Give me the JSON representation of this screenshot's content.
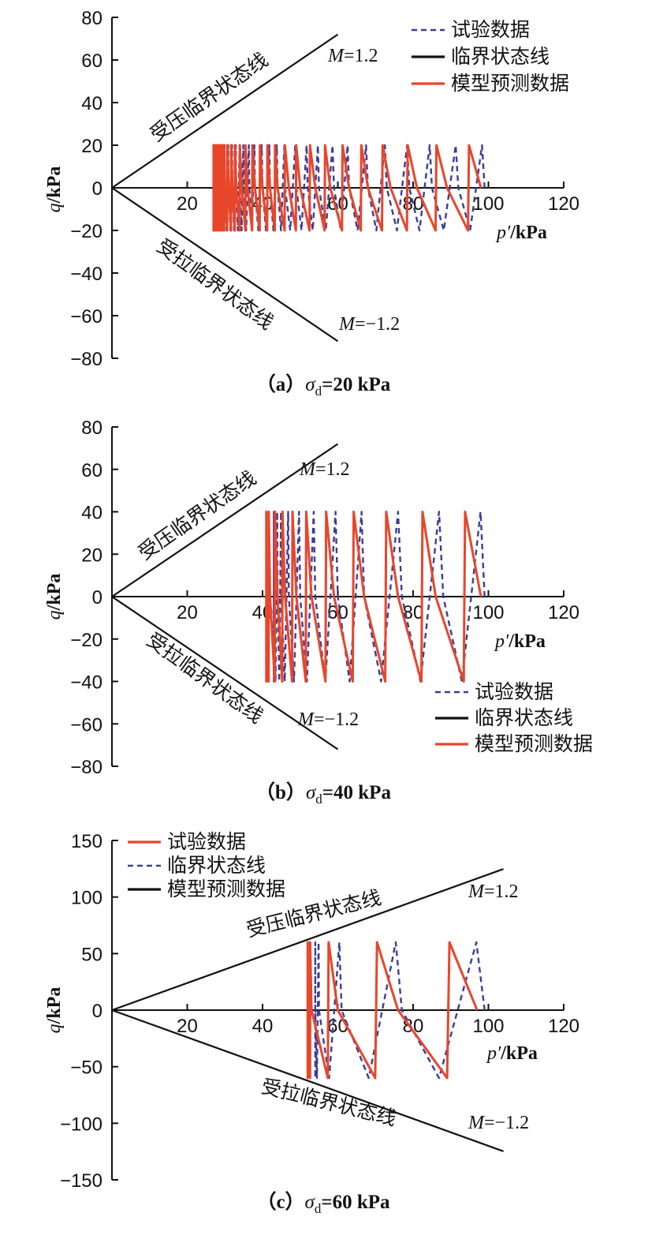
{
  "colors": {
    "test": "#3a3d9a",
    "model": "#e8462a",
    "line": "#111111"
  },
  "chart_data": [
    {
      "type": "line",
      "caption": "（a）σd=20 kPa",
      "xlabel": "p′/kPa",
      "ylabel": "q/kPa",
      "xlim": [
        0,
        120
      ],
      "ylim": [
        -80,
        80
      ],
      "x_ticks": [
        20,
        40,
        60,
        80,
        100,
        120
      ],
      "y_ticks": [
        80,
        60,
        40,
        20,
        0,
        -20,
        -40,
        -60,
        -80
      ],
      "upper_line_label": "M=1.2",
      "lower_line_label": "M=−1.2",
      "upper_line_text": "受压临界状态线",
      "lower_line_text": "受拉临界状态线",
      "legend": [
        "试验数据",
        "临界状态线",
        "模型预测数据"
      ],
      "cycle_amplitude": 20,
      "test_cycles_p": [
        99,
        92,
        85,
        79,
        73,
        68,
        63,
        59,
        55,
        52,
        49,
        46,
        44,
        42,
        40,
        38,
        36.5,
        35,
        34,
        33,
        32,
        31,
        30,
        29.5,
        29,
        28.5,
        28
      ],
      "model_cycles_p": [
        98,
        89,
        81,
        74,
        68,
        63,
        58,
        54,
        50,
        47,
        44,
        42,
        40,
        38,
        36,
        34.5,
        33,
        32,
        31,
        30,
        29.5,
        29,
        28.5,
        28,
        27.5,
        27.2,
        27
      ]
    },
    {
      "type": "line",
      "caption": "（b）σd=40 kPa",
      "xlabel": "p′/kPa",
      "ylabel": "q/kPa",
      "xlim": [
        0,
        120
      ],
      "ylim": [
        -80,
        80
      ],
      "x_ticks": [
        20,
        40,
        60,
        80,
        100,
        120
      ],
      "y_ticks": [
        80,
        60,
        40,
        20,
        0,
        -20,
        -40,
        -60,
        -80
      ],
      "upper_line_label": "M=1.2",
      "lower_line_label": "M=−1.2",
      "upper_line_text": "受压临界状态线",
      "lower_line_text": "受拉临界状态线",
      "legend": [
        "试验数据",
        "临界状态线",
        "模型预测数据"
      ],
      "cycle_amplitude": 40,
      "test_cycles_p": [
        99,
        88,
        77,
        67,
        60,
        54,
        50,
        47,
        45,
        44,
        43
      ],
      "model_cycles_p": [
        98,
        86,
        76,
        67,
        59,
        53,
        49,
        46,
        44,
        42,
        41
      ]
    },
    {
      "type": "line",
      "caption": "（c）σd=60 kPa",
      "xlabel": "p′/kPa",
      "ylabel": "q/kPa",
      "xlim": [
        0,
        120
      ],
      "ylim": [
        -150,
        150
      ],
      "x_ticks": [
        20,
        40,
        60,
        80,
        100,
        120
      ],
      "y_ticks": [
        150,
        100,
        50,
        0,
        -50,
        -100,
        -150
      ],
      "upper_line_label": "M=1.2",
      "lower_line_label": "M=−1.2",
      "upper_line_text": "受压临界状态线",
      "lower_line_text": "受拉临界状态线",
      "legend": [
        "试验数据",
        "临界状态线",
        "模型预测数据"
      ],
      "cycle_amplitude": 60,
      "test_cycles_p": [
        99,
        77,
        61,
        55,
        54
      ],
      "model_cycles_p": [
        97,
        76,
        60,
        53,
        52
      ]
    }
  ]
}
